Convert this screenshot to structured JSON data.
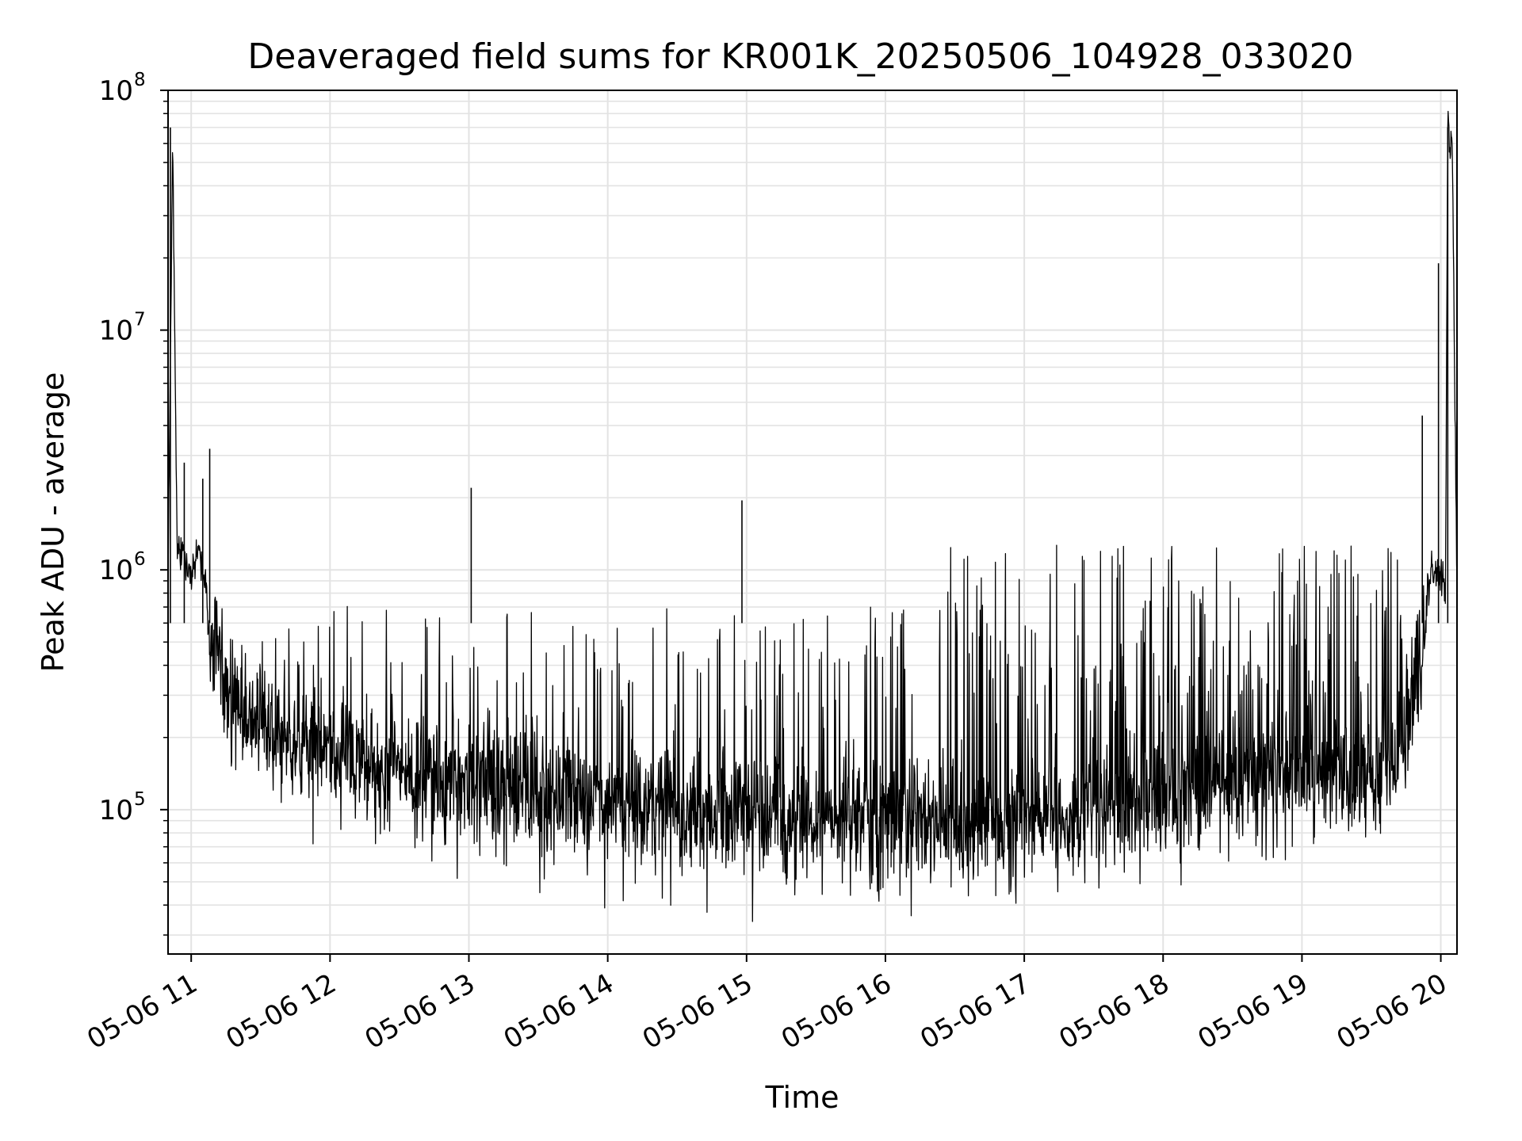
{
  "chart_data": {
    "type": "line",
    "title": "Deaveraged field sums for KR001K_20250506_104928_033020",
    "xlabel": "Time",
    "ylabel": "Peak ADU - average",
    "yscale": "log",
    "ylim": [
      25000,
      100000000
    ],
    "xlim": [
      "2025-05-06T10:50",
      "2025-05-06T20:07"
    ],
    "grid": true,
    "line_color": "#000000",
    "grid_color": "#e3e3e3",
    "x_ticks": [
      "2025-05-06T11:00",
      "2025-05-06T12:00",
      "2025-05-06T13:00",
      "2025-05-06T14:00",
      "2025-05-06T15:00",
      "2025-05-06T16:00",
      "2025-05-06T17:00",
      "2025-05-06T18:00",
      "2025-05-06T19:00",
      "2025-05-06T20:00"
    ],
    "x_tick_labels": [
      "05-06 11",
      "05-06 12",
      "05-06 13",
      "05-06 14",
      "05-06 15",
      "05-06 16",
      "05-06 17",
      "05-06 18",
      "05-06 19",
      "05-06 20"
    ],
    "y_ticks": [
      100000,
      1000000,
      10000000,
      100000000
    ],
    "y_tick_labels": [
      {
        "base": "10",
        "exp": "5"
      },
      {
        "base": "10",
        "exp": "6"
      },
      {
        "base": "10",
        "exp": "7"
      },
      {
        "base": "10",
        "exp": "8"
      }
    ],
    "series": [
      {
        "x": [
          "2025-05-06T10:50",
          "2025-05-06T10:52",
          "2025-05-06T10:54",
          "2025-05-06T10:56",
          "2025-05-06T10:58",
          "2025-05-06T11:00",
          "2025-05-06T11:03",
          "2025-05-06T11:06",
          "2025-05-06T11:08",
          "2025-05-06T11:12",
          "2025-05-06T11:18",
          "2025-05-06T11:25",
          "2025-05-06T11:30",
          "2025-05-06T11:40",
          "2025-05-06T11:50",
          "2025-05-06T12:00",
          "2025-05-06T12:20",
          "2025-05-06T12:40",
          "2025-05-06T13:00",
          "2025-05-06T13:20",
          "2025-05-06T13:40",
          "2025-05-06T14:00",
          "2025-05-06T14:30",
          "2025-05-06T15:00",
          "2025-05-06T15:30",
          "2025-05-06T16:00",
          "2025-05-06T16:30",
          "2025-05-06T17:00",
          "2025-05-06T17:30",
          "2025-05-06T18:00",
          "2025-05-06T18:30",
          "2025-05-06T19:00",
          "2025-05-06T19:30",
          "2025-05-06T19:40",
          "2025-05-06T19:47",
          "2025-05-06T19:52",
          "2025-05-06T19:56",
          "2025-05-06T20:00",
          "2025-05-06T20:02",
          "2025-05-06T20:03",
          "2025-05-06T20:05",
          "2025-05-06T20:07"
        ],
        "y": [
          900000,
          65000000,
          1100000,
          1300000,
          1000000,
          950000,
          1200000,
          950000,
          600000,
          380000,
          280000,
          250000,
          220000,
          200000,
          180000,
          170000,
          150000,
          140000,
          130000,
          120000,
          110000,
          100000,
          100000,
          95000,
          95000,
          90000,
          90000,
          90000,
          100000,
          110000,
          130000,
          140000,
          140000,
          160000,
          250000,
          450000,
          1000000,
          950000,
          850000,
          65000000,
          60000000,
          800000
        ]
      }
    ],
    "spikes": [
      {
        "x": "2025-05-06T10:51",
        "y": 70000000
      },
      {
        "x": "2025-05-06T10:57",
        "y": 2800000
      },
      {
        "x": "2025-05-06T11:08",
        "y": 3200000
      },
      {
        "x": "2025-05-06T11:05",
        "y": 2400000
      },
      {
        "x": "2025-05-06T13:01",
        "y": 2200000
      },
      {
        "x": "2025-05-06T14:58",
        "y": 1950000
      },
      {
        "x": "2025-05-06T19:52",
        "y": 4400000
      },
      {
        "x": "2025-05-06T19:59",
        "y": 19000000
      },
      {
        "x": "2025-05-06T20:03",
        "y": 70000000
      }
    ]
  }
}
